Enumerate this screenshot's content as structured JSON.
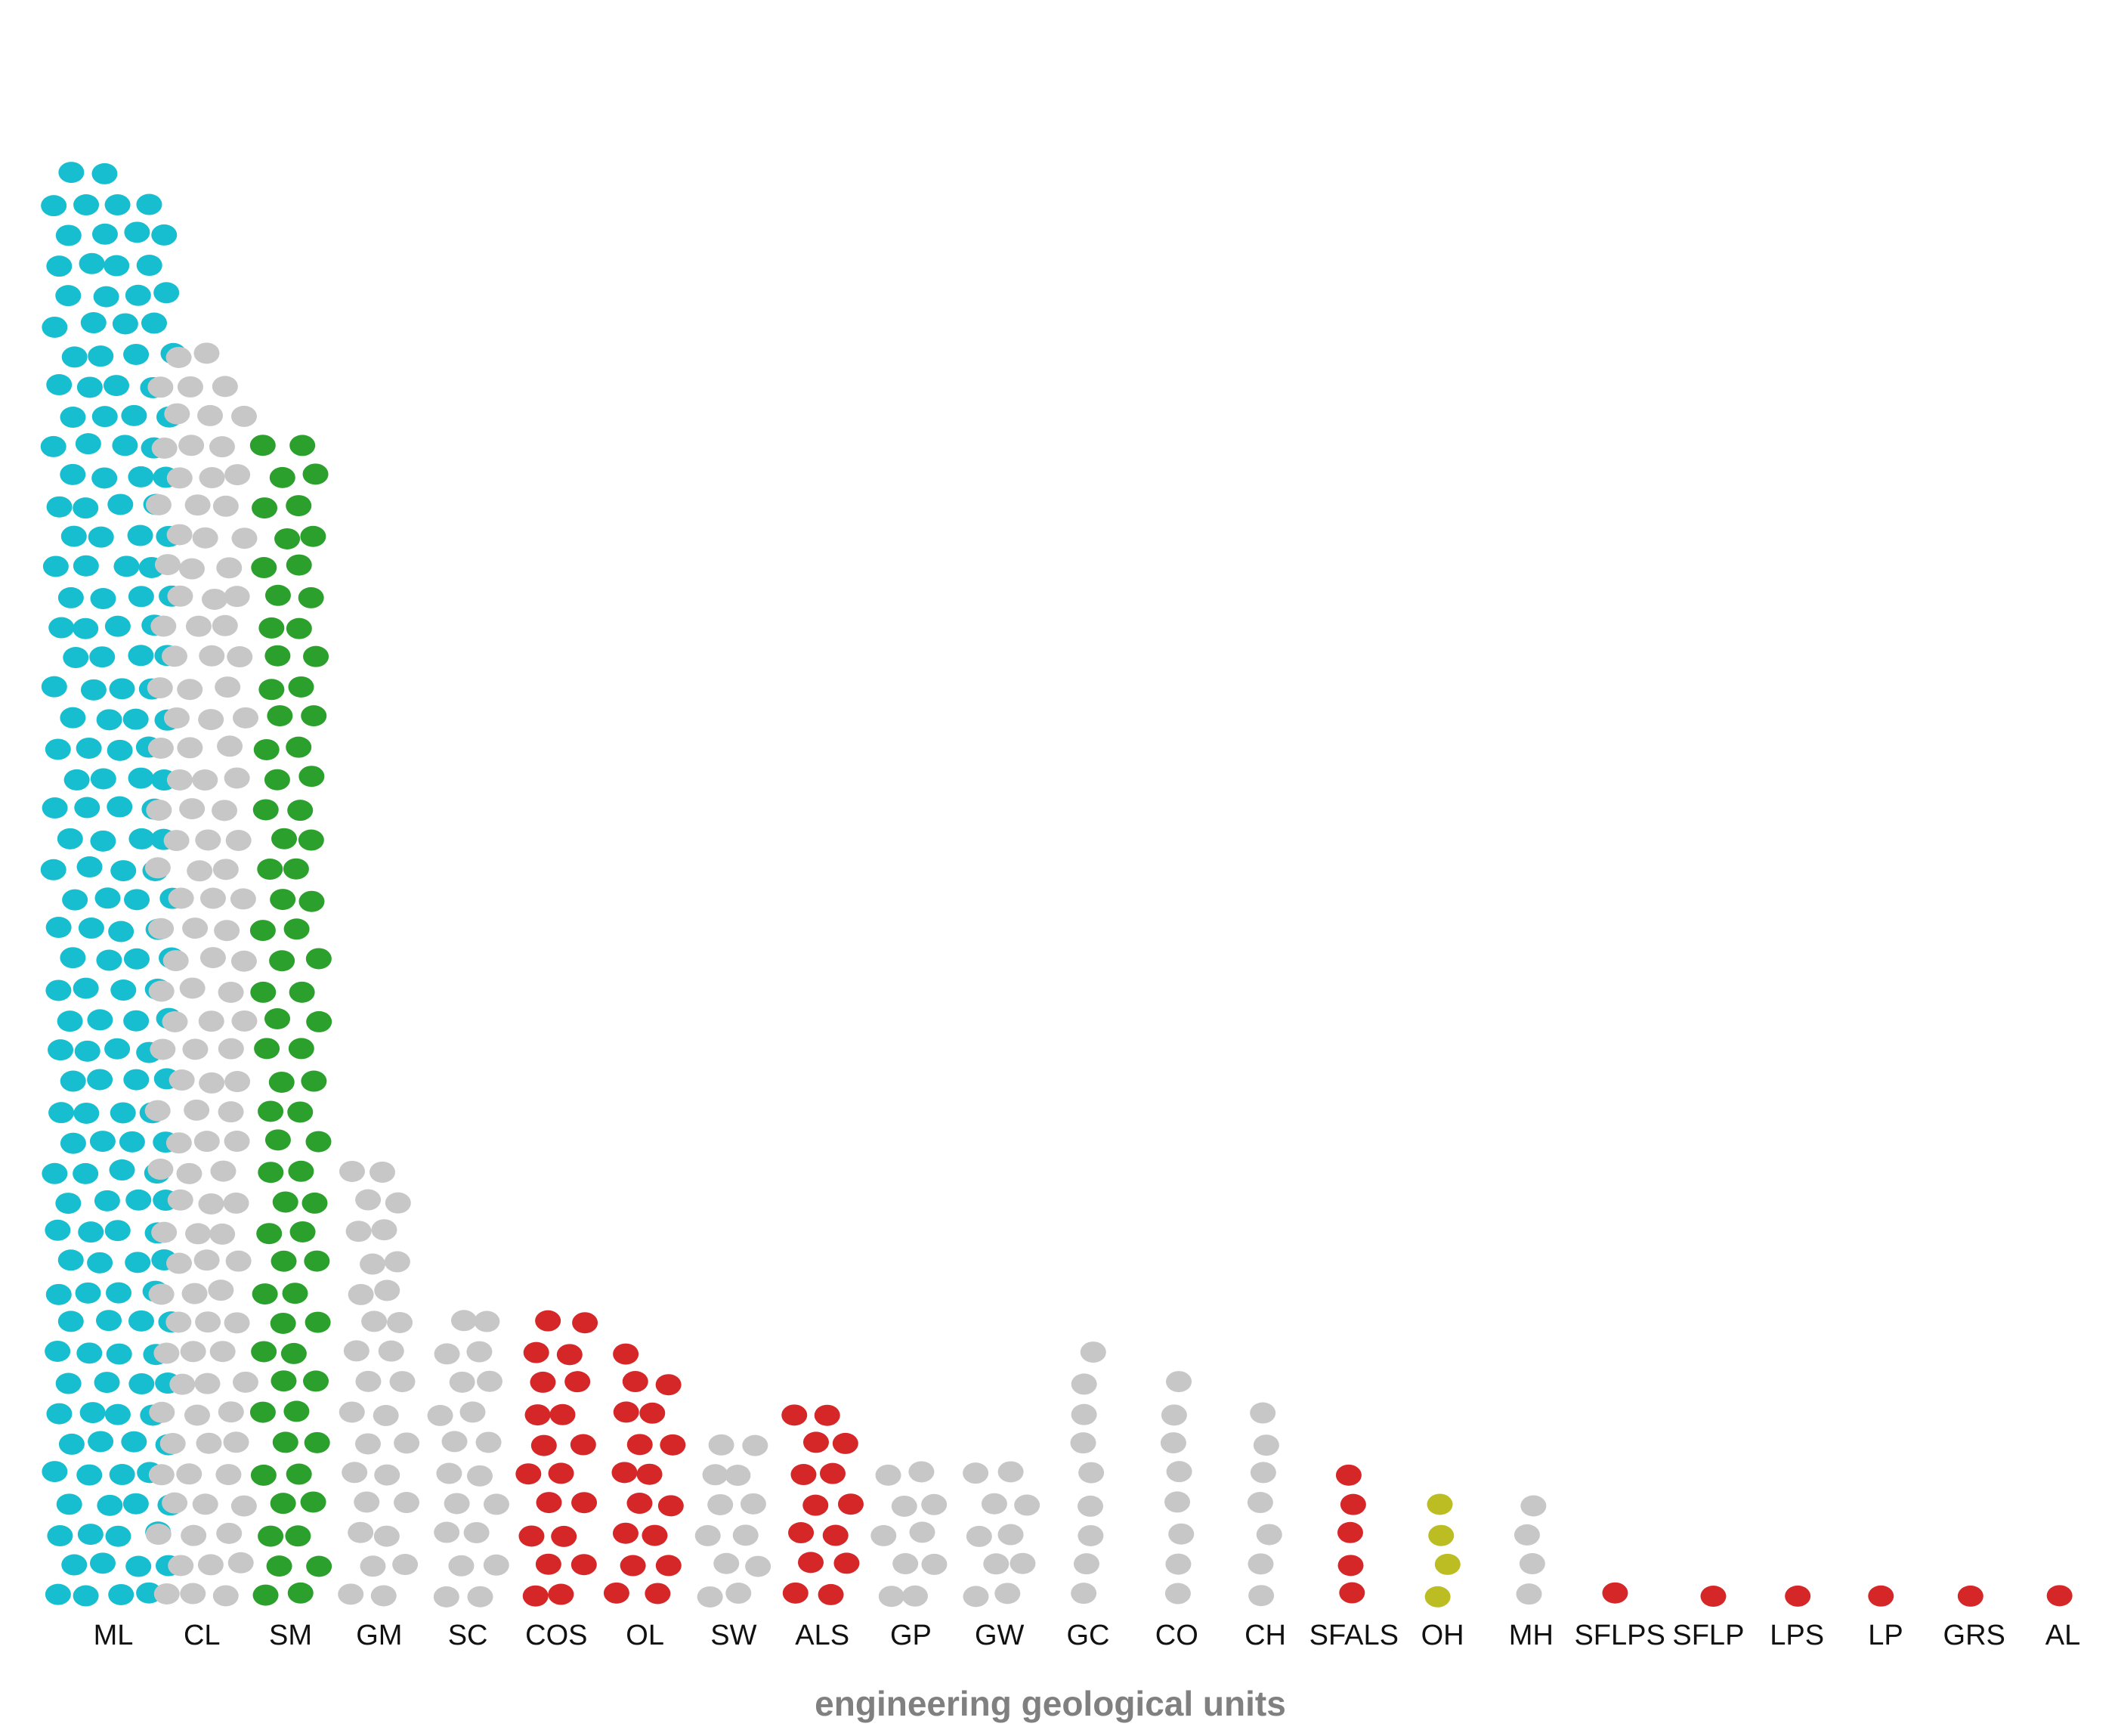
{
  "chart_data": {
    "type": "swarm",
    "x_label": "engineering geological units",
    "categories": [
      "ML",
      "CL",
      "SM",
      "GM",
      "SC",
      "COS",
      "OL",
      "SW",
      "ALS",
      "GP",
      "GW",
      "GC",
      "CO",
      "CH",
      "SFALS",
      "OH",
      "MH",
      "SFLPS",
      "SFLP",
      "LPS",
      "LP",
      "GRS",
      "AL"
    ],
    "values": [
      190,
      125,
      78,
      30,
      20,
      20,
      17,
      12,
      14,
      10,
      10,
      9,
      8,
      7,
      5,
      4,
      4,
      1,
      1,
      1,
      1,
      1,
      1
    ],
    "colors": [
      "#17becf",
      "#c7c7c7",
      "#2ca02c",
      "#c7c7c7",
      "#c7c7c7",
      "#d62728",
      "#d62728",
      "#c7c7c7",
      "#d62728",
      "#c7c7c7",
      "#c7c7c7",
      "#c7c7c7",
      "#c7c7c7",
      "#c7c7c7",
      "#d62728",
      "#bcbd22",
      "#c7c7c7",
      "#d62728",
      "#d62728",
      "#d62728",
      "#d62728",
      "#d62728",
      "#d62728"
    ]
  }
}
